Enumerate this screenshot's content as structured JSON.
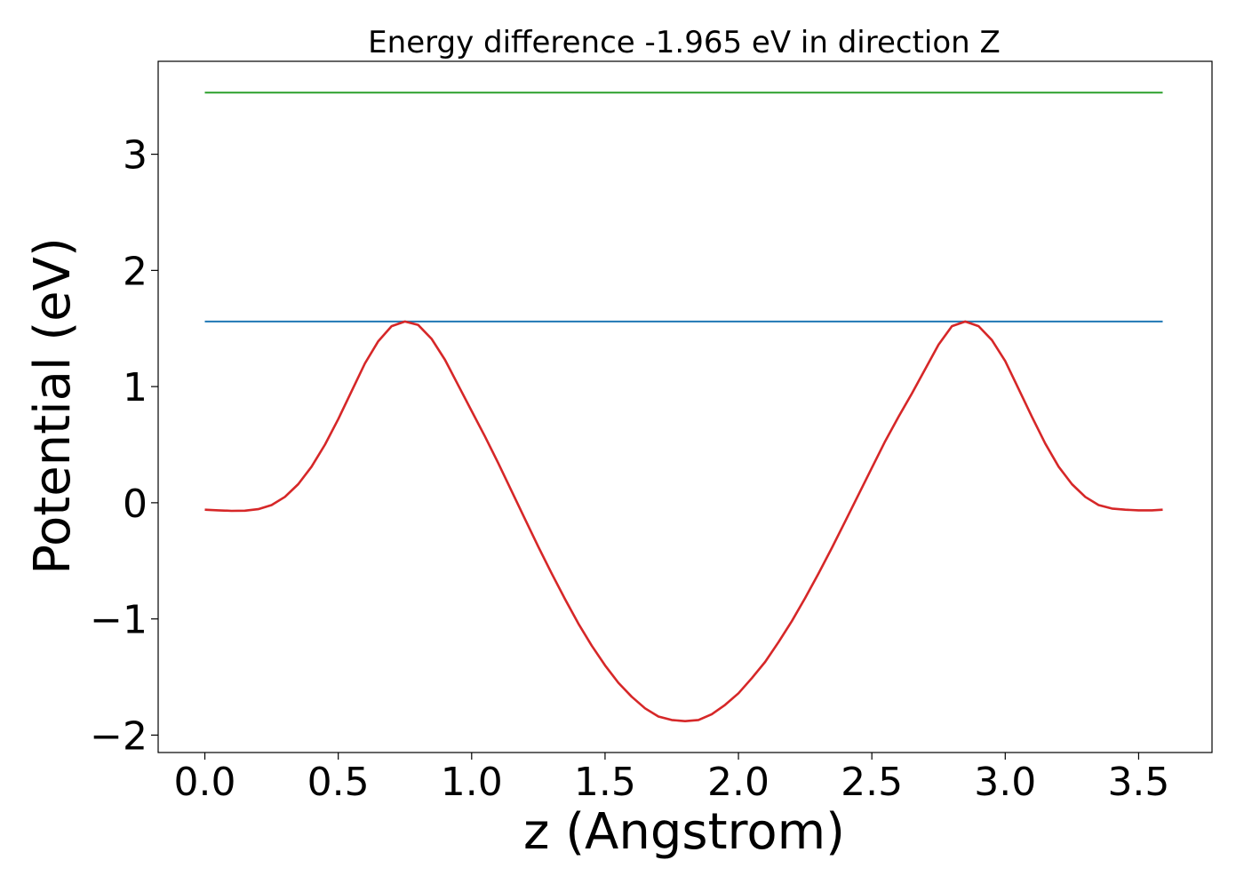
{
  "chart_data": {
    "type": "line",
    "title": "Energy difference -1.965 eV in direction Z",
    "xlabel": "z (Angstrom)",
    "ylabel": "Potential (eV)",
    "xlim": [
      -0.175,
      3.775
    ],
    "ylim": [
      -2.15,
      3.8
    ],
    "xticks": [
      0.0,
      0.5,
      1.0,
      1.5,
      2.0,
      2.5,
      3.0,
      3.5
    ],
    "xtick_labels": [
      "0.0",
      "0.5",
      "1.0",
      "1.5",
      "2.0",
      "2.5",
      "3.0",
      "3.5"
    ],
    "yticks": [
      -2,
      -1,
      0,
      1,
      2,
      3
    ],
    "ytick_labels": [
      "−2",
      "−1",
      "0",
      "1",
      "2",
      "3"
    ],
    "grid": false,
    "legend": false,
    "series": [
      {
        "color": "#2ca02c",
        "x": [
          0.0,
          3.59
        ],
        "y": [
          3.53,
          3.53
        ]
      },
      {
        "color": "#1f77b4",
        "x": [
          0.0,
          3.59
        ],
        "y": [
          1.56,
          1.56
        ]
      },
      {
        "color": "#d62728",
        "x": [
          0.0,
          0.05,
          0.1,
          0.15,
          0.2,
          0.25,
          0.3,
          0.35,
          0.4,
          0.45,
          0.5,
          0.55,
          0.6,
          0.65,
          0.7,
          0.75,
          0.8,
          0.85,
          0.9,
          0.95,
          1.0,
          1.05,
          1.1,
          1.15,
          1.2,
          1.25,
          1.3,
          1.35,
          1.4,
          1.45,
          1.5,
          1.55,
          1.6,
          1.65,
          1.7,
          1.75,
          1.8,
          1.85,
          1.9,
          1.95,
          2.0,
          2.05,
          2.1,
          2.15,
          2.2,
          2.25,
          2.3,
          2.35,
          2.4,
          2.45,
          2.5,
          2.55,
          2.6,
          2.65,
          2.7,
          2.75,
          2.8,
          2.85,
          2.9,
          2.95,
          3.0,
          3.05,
          3.1,
          3.15,
          3.2,
          3.25,
          3.3,
          3.35,
          3.4,
          3.45,
          3.5,
          3.55,
          3.59
        ],
        "y": [
          -0.06,
          -0.065,
          -0.07,
          -0.068,
          -0.055,
          -0.02,
          0.05,
          0.16,
          0.31,
          0.5,
          0.72,
          0.96,
          1.2,
          1.39,
          1.52,
          1.56,
          1.53,
          1.41,
          1.23,
          1.01,
          0.79,
          0.57,
          0.34,
          0.1,
          -0.14,
          -0.38,
          -0.61,
          -0.83,
          -1.04,
          -1.23,
          -1.4,
          -1.55,
          -1.67,
          -1.77,
          -1.84,
          -1.87,
          -1.88,
          -1.87,
          -1.82,
          -1.74,
          -1.64,
          -1.51,
          -1.37,
          -1.2,
          -1.02,
          -0.82,
          -0.61,
          -0.39,
          -0.16,
          0.07,
          0.3,
          0.53,
          0.74,
          0.94,
          1.15,
          1.36,
          1.52,
          1.56,
          1.52,
          1.4,
          1.22,
          0.98,
          0.74,
          0.51,
          0.31,
          0.16,
          0.05,
          -0.02,
          -0.05,
          -0.06,
          -0.065,
          -0.065,
          -0.06
        ]
      }
    ]
  }
}
